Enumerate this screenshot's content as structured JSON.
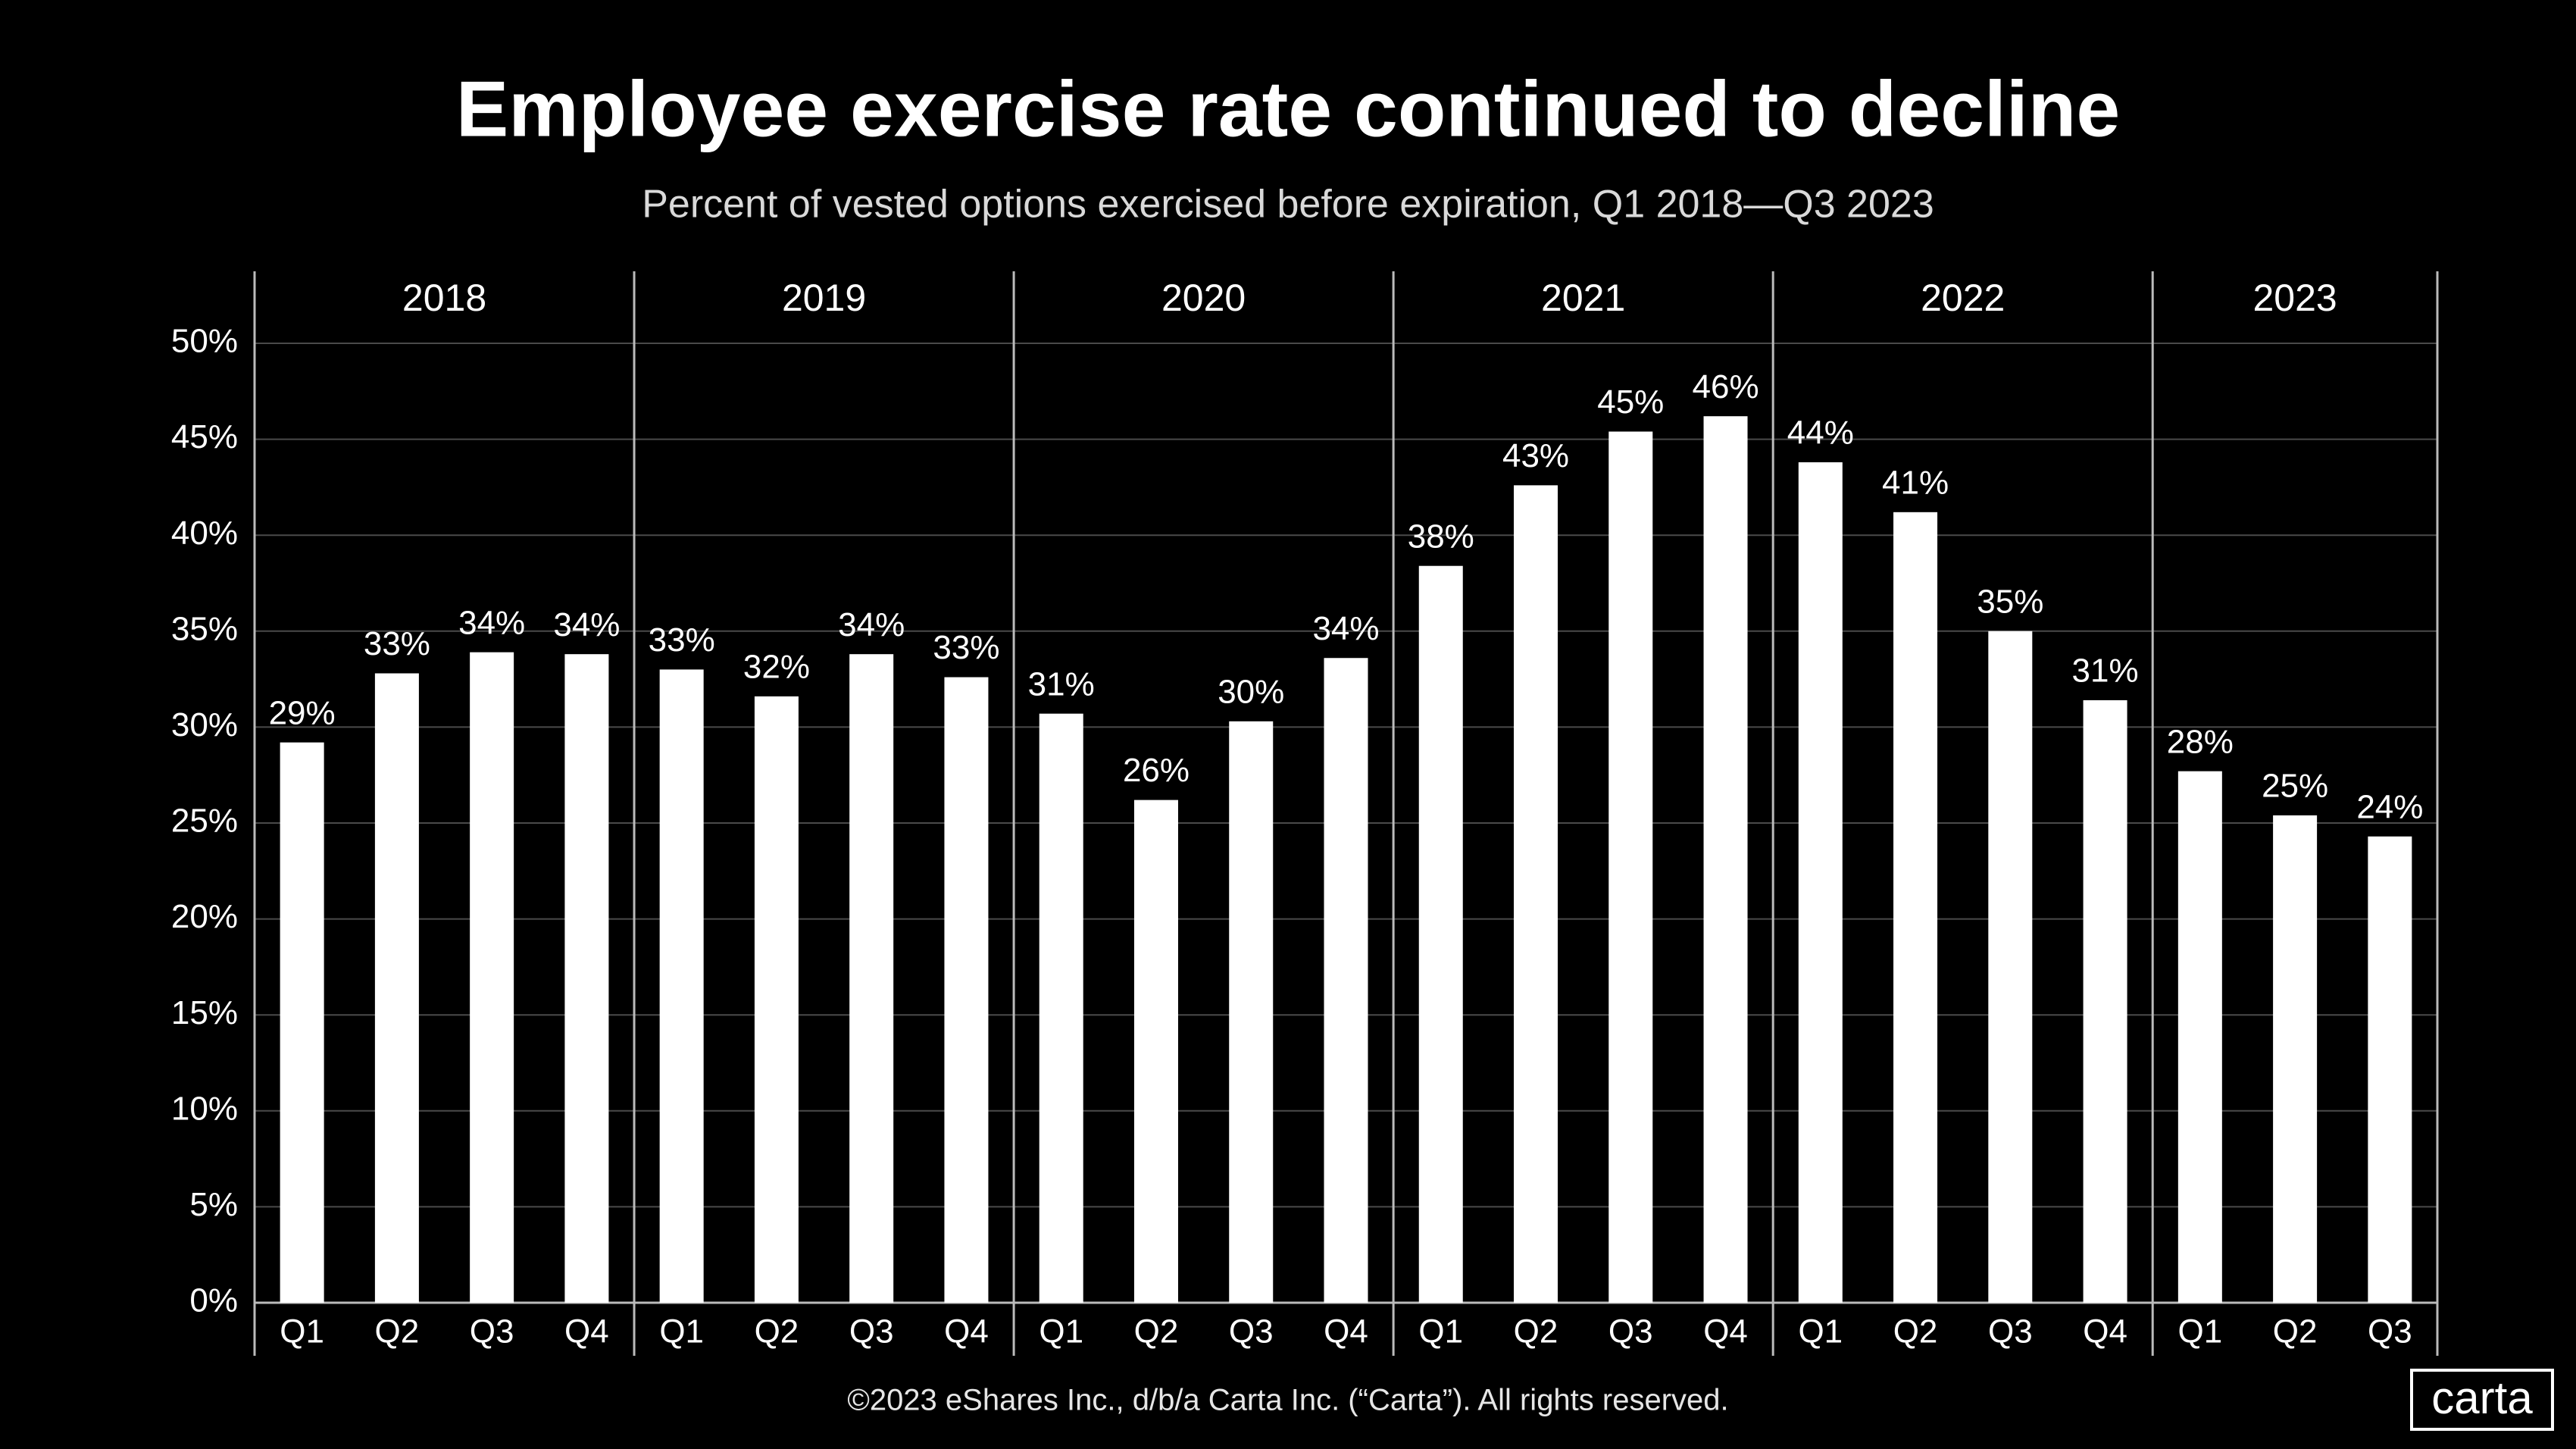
{
  "chart_data": {
    "type": "bar",
    "title": "Employee exercise rate continued to decline",
    "subtitle": "Percent of vested options exercised before expiration, Q1 2018—Q3 2023",
    "color": "#ffffff",
    "groups": [
      {
        "label": "2018",
        "categories": [
          "Q1",
          "Q2",
          "Q3",
          "Q4"
        ],
        "values": [
          29.2,
          32.8,
          33.9,
          33.8
        ],
        "value_labels": [
          "29%",
          "33%",
          "34%",
          "34%"
        ]
      },
      {
        "label": "2019",
        "categories": [
          "Q1",
          "Q2",
          "Q3",
          "Q4"
        ],
        "values": [
          33.0,
          31.6,
          33.8,
          32.6
        ],
        "value_labels": [
          "33%",
          "32%",
          "34%",
          "33%"
        ]
      },
      {
        "label": "2020",
        "categories": [
          "Q1",
          "Q2",
          "Q3",
          "Q4"
        ],
        "values": [
          30.7,
          26.2,
          30.3,
          33.6
        ],
        "value_labels": [
          "31%",
          "26%",
          "30%",
          "34%"
        ]
      },
      {
        "label": "2021",
        "categories": [
          "Q1",
          "Q2",
          "Q3",
          "Q4"
        ],
        "values": [
          38.4,
          42.6,
          45.4,
          46.2
        ],
        "value_labels": [
          "38%",
          "43%",
          "45%",
          "46%"
        ]
      },
      {
        "label": "2022",
        "categories": [
          "Q1",
          "Q2",
          "Q3",
          "Q4"
        ],
        "values": [
          43.8,
          41.2,
          35.0,
          31.4
        ],
        "value_labels": [
          "44%",
          "41%",
          "35%",
          "31%"
        ]
      },
      {
        "label": "2023",
        "categories": [
          "Q1",
          "Q2",
          "Q3"
        ],
        "values": [
          27.7,
          25.4,
          24.3
        ],
        "value_labels": [
          "28%",
          "25%",
          "24%"
        ]
      }
    ],
    "ylim": [
      0,
      50
    ],
    "yticks": [
      {
        "value": 0,
        "label": "0%"
      },
      {
        "value": 5,
        "label": "5%"
      },
      {
        "value": 10,
        "label": "10%"
      },
      {
        "value": 15,
        "label": "15%"
      },
      {
        "value": 20,
        "label": "20%"
      },
      {
        "value": 25,
        "label": "25%"
      },
      {
        "value": 30,
        "label": "30%"
      },
      {
        "value": 35,
        "label": "35%"
      },
      {
        "value": 40,
        "label": "40%"
      },
      {
        "value": 45,
        "label": "45%"
      },
      {
        "value": 50,
        "label": "50%"
      }
    ],
    "grid": true,
    "footer": "©2023 eShares Inc., d/b/a Carta Inc. (“Carta”). All rights reserved.",
    "logo": "carta"
  }
}
